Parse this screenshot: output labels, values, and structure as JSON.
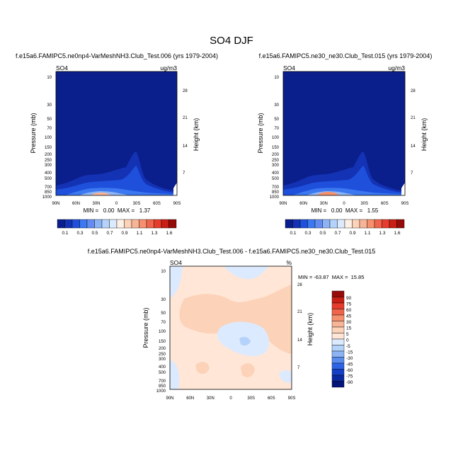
{
  "figure": {
    "title": "SO4 DJF"
  },
  "chart_data": [
    {
      "type": "heatmap",
      "id": "panel-a",
      "title": "f.e15a6.FAMIPC5.ne0np4-VarMeshNH3.Club_Test.006 (yrs 1979-2004)",
      "variable": "SO4",
      "units": "ug/m3",
      "ylabel": "Pressure (mb)",
      "y2label": "Height (km)",
      "xticks": [
        "90N",
        "60N",
        "30N",
        "0",
        "30S",
        "60S",
        "90S"
      ],
      "yticks": [
        "10",
        "30",
        "50",
        "70",
        "100",
        "150",
        "200",
        "250",
        "300",
        "400",
        "500",
        "700",
        "850",
        "1000"
      ],
      "y2ticks": [
        "28",
        "21",
        "14",
        "7"
      ],
      "stats": "MIN =   0.00  MAX =   1.37"
    },
    {
      "type": "heatmap",
      "id": "panel-b",
      "title": "f.e15a6.FAMIPC5.ne30_ne30.Club_Test.015 (yrs 1979-2004)",
      "variable": "SO4",
      "units": "ug/m3",
      "ylabel": "Pressure (mb)",
      "y2label": "Height (km)",
      "xticks": [
        "90N",
        "60N",
        "30N",
        "0",
        "30S",
        "60S",
        "90S"
      ],
      "yticks": [
        "10",
        "30",
        "50",
        "70",
        "100",
        "150",
        "200",
        "250",
        "300",
        "400",
        "500",
        "700",
        "850",
        "1000"
      ],
      "y2ticks": [
        "28",
        "21",
        "14",
        "7"
      ],
      "stats": "MIN =   0.00  MAX =   1.55"
    },
    {
      "type": "heatmap",
      "id": "panel-diff",
      "title": "f.e15a6.FAMIPC5.ne0np4-VarMeshNH3.Club_Test.006 - f.e15a6.FAMIPC5.ne30_ne30.Club_Test.015",
      "variable": "SO4",
      "units": "%",
      "ylabel": "Pressure (mb)",
      "y2label": "Height (km)",
      "xticks": [
        "90N",
        "60N",
        "30N",
        "0",
        "30S",
        "60S",
        "90S"
      ],
      "yticks": [
        "10",
        "30",
        "50",
        "70",
        "100",
        "150",
        "200",
        "250",
        "300",
        "400",
        "500",
        "700",
        "850",
        "1000"
      ],
      "y2ticks": [
        "28",
        "21",
        "14",
        "7"
      ],
      "stats": "MIN = -63.87  MAX =  15.85"
    }
  ],
  "colorbars": {
    "concentration": {
      "labels": [
        "0.1",
        "0.3",
        "0.5",
        "0.7",
        "0.9",
        "1.1",
        "1.3",
        "1.6"
      ],
      "colors": [
        "#0a1e8c",
        "#1432b4",
        "#1e50dc",
        "#3c78f0",
        "#648cf0",
        "#8cb4f5",
        "#b4d2fa",
        "#dceaff",
        "#fff0e6",
        "#fcd2b9",
        "#f8b496",
        "#f5916e",
        "#f0644b",
        "#e63c2d",
        "#c81e14",
        "#960a0a"
      ]
    },
    "difference": {
      "labels": [
        "90",
        "75",
        "60",
        "45",
        "30",
        "15",
        "5",
        "0",
        "-5",
        "-15",
        "-30",
        "-45",
        "-60",
        "-75",
        "-90"
      ],
      "colors": [
        "#960a0a",
        "#c81e14",
        "#e63c2d",
        "#f0644b",
        "#f5916e",
        "#f8b496",
        "#fcd2b9",
        "#ffe6d6",
        "#dceaff",
        "#b4d2fa",
        "#8cb4f5",
        "#5a8cf0",
        "#2d64e6",
        "#1440c8",
        "#0a28a0",
        "#051478"
      ]
    }
  },
  "colors": {
    "background_field": "#0a1e8c",
    "diff_neutral": "#ffe6d6",
    "diff_warm": "#fcd2b9",
    "diff_cool": "#dceaff"
  }
}
